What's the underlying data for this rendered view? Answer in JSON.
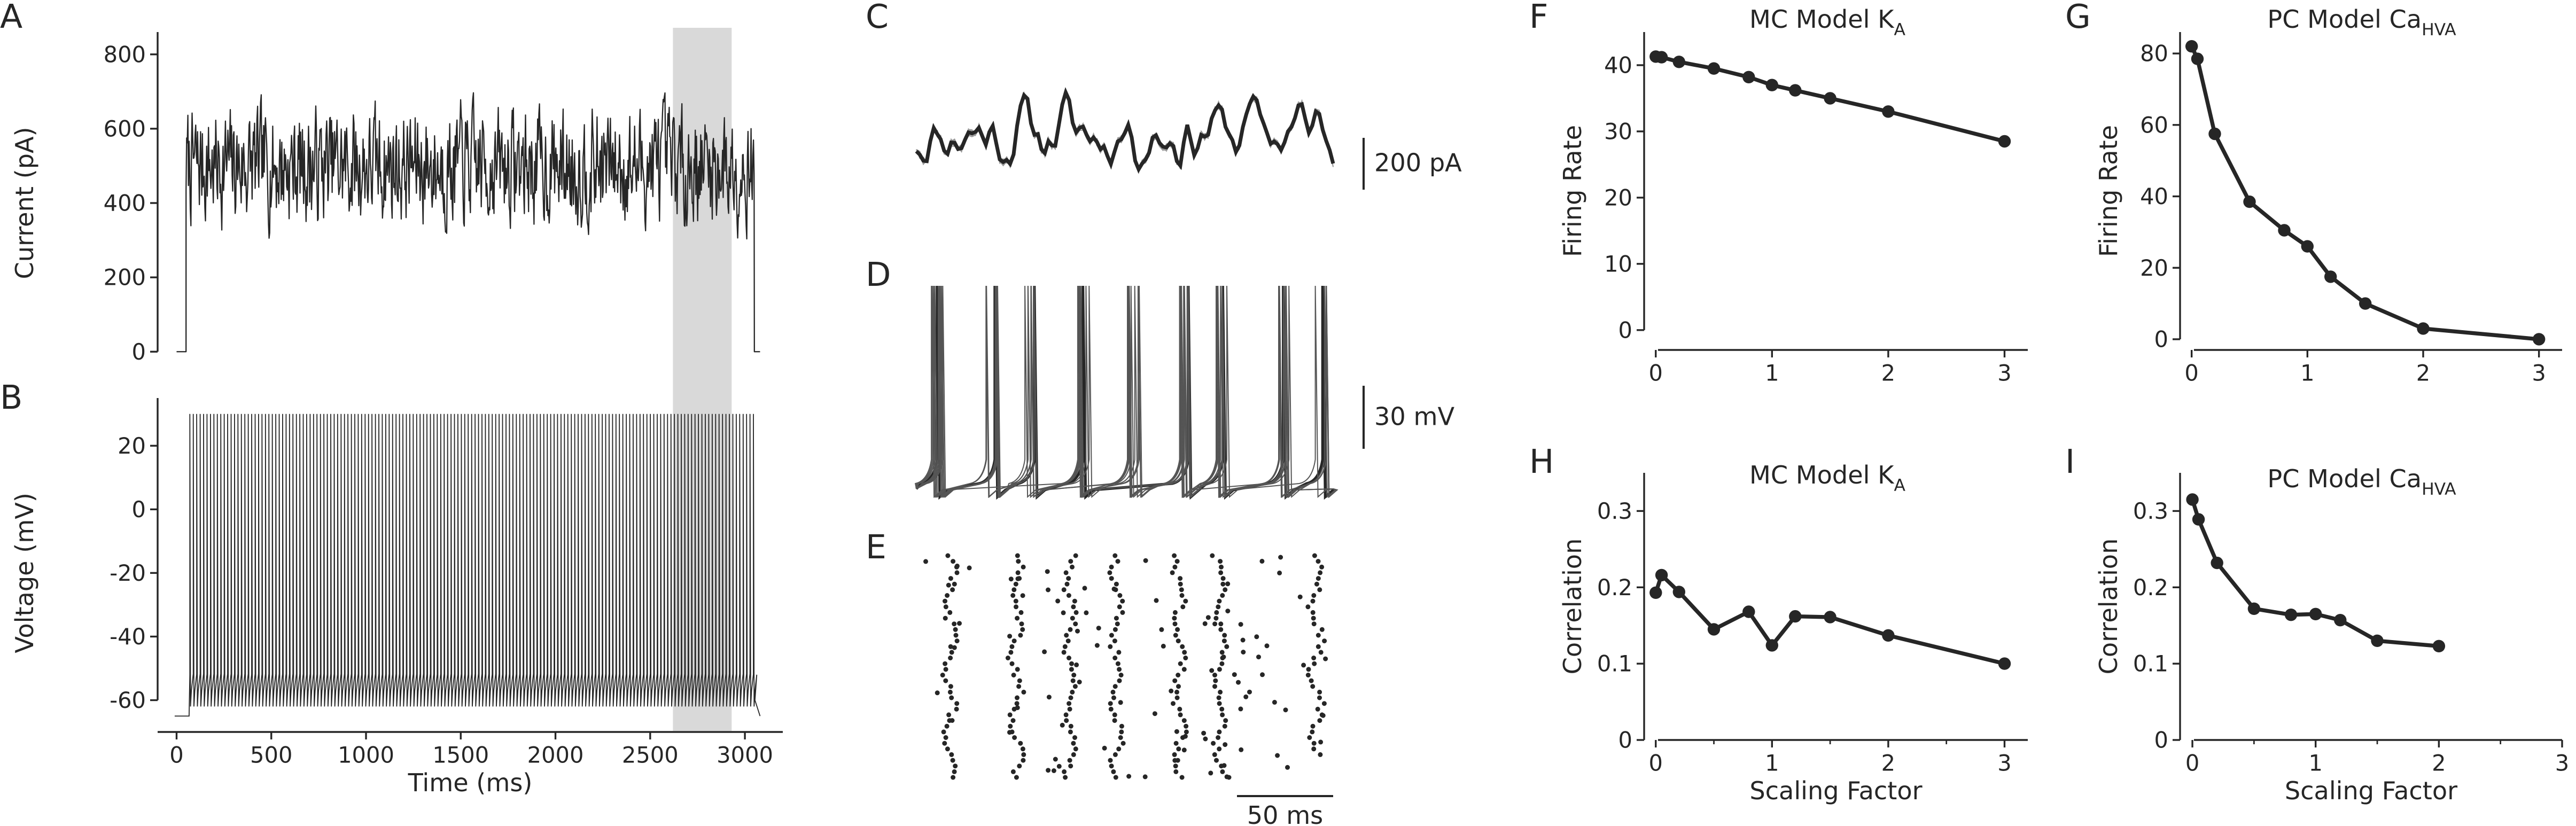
{
  "figure": {
    "panels": [
      "A",
      "B",
      "C",
      "D",
      "E",
      "F",
      "G",
      "H",
      "I"
    ]
  },
  "chart_data": [
    {
      "id": "A",
      "type": "line",
      "ylabel": "Current (pA)",
      "xlim": [
        -100,
        3200
      ],
      "ylim": [
        -60,
        860
      ],
      "yticks": [
        0,
        200,
        400,
        600,
        800
      ],
      "note": "noisy injected current, 0 pA before onset and after offset, fluctuating ~200-780 pA between 50 and 3050 ms",
      "series": [
        {
          "step_on_ms": 50,
          "step_off_ms": 3050,
          "mean_pA": 500,
          "min_pA": 200,
          "max_pA": 780
        }
      ]
    },
    {
      "id": "B",
      "type": "line",
      "xlabel": "Time (ms)",
      "ylabel": "Voltage (mV)",
      "xlim": [
        -100,
        3200
      ],
      "ylim": [
        -70,
        35
      ],
      "xticks": [
        0,
        500,
        1000,
        1500,
        2000,
        2500,
        3000
      ],
      "yticks": [
        -60,
        -40,
        -20,
        0,
        20
      ],
      "series": [
        {
          "resting_mV": -65,
          "trough_mV": -62,
          "spike_peak_mV": 30,
          "spike_count": 165,
          "first_spike_ms": 70,
          "last_spike_ms": 3045
        }
      ],
      "highlight": {
        "start_ms": 2620,
        "end_ms": 2930
      }
    },
    {
      "id": "C",
      "type": "line",
      "scalebar": {
        "value": 200,
        "unit": "pA",
        "label": "200 pA"
      },
      "note": "zoom of highlighted current: thin grey repeats around thick black mean trace"
    },
    {
      "id": "D",
      "type": "line",
      "scalebar": {
        "value": 30,
        "unit": "mV",
        "label": "30 mV"
      },
      "note": "overlaid voltage traces from repeated trials, one trial thick"
    },
    {
      "id": "E",
      "type": "scatter",
      "scalebar": {
        "value": 50,
        "unit": "ms",
        "label": "50 ms"
      },
      "note": "spike raster across trials"
    },
    {
      "id": "F",
      "type": "line",
      "title": "MC Model K",
      "title_sub": "A",
      "ylabel": "Firing Rate",
      "xlim": [
        -0.1,
        3.2
      ],
      "ylim": [
        -3,
        45
      ],
      "xticks": [
        0,
        1,
        2,
        3
      ],
      "yticks": [
        0,
        10,
        20,
        30,
        40
      ],
      "x": [
        0,
        0.05,
        0.2,
        0.5,
        0.8,
        1.0,
        1.2,
        1.5,
        2.0,
        3.0
      ],
      "series": [
        {
          "values": [
            41.3,
            41.2,
            40.5,
            39.5,
            38.2,
            37.0,
            36.2,
            35.0,
            33.0,
            28.5
          ]
        }
      ]
    },
    {
      "id": "G",
      "type": "line",
      "title": "PC Model Ca",
      "title_sub": "HVA",
      "ylabel": "Firing Rate",
      "xlim": [
        -0.1,
        3.2
      ],
      "ylim": [
        -3,
        86
      ],
      "xticks": [
        0,
        1,
        2,
        3
      ],
      "yticks": [
        0,
        20,
        40,
        60,
        80
      ],
      "x": [
        0,
        0.05,
        0.2,
        0.5,
        0.8,
        1.0,
        1.2,
        1.5,
        2.0,
        3.0
      ],
      "series": [
        {
          "values": [
            82.0,
            78.5,
            57.5,
            38.5,
            30.5,
            26.0,
            17.5,
            10.0,
            3.0,
            0.0
          ]
        }
      ]
    },
    {
      "id": "H",
      "type": "line",
      "title": "MC Model K",
      "title_sub": "A",
      "xlabel": "Scaling Factor",
      "ylabel": "Correlation",
      "xlim": [
        -0.1,
        3.2
      ],
      "ylim": [
        0,
        0.35
      ],
      "xticks": [
        0,
        1,
        2,
        3
      ],
      "yticks": [
        0.0,
        0.1,
        0.2,
        0.3
      ],
      "x": [
        0,
        0.05,
        0.2,
        0.5,
        0.8,
        1.0,
        1.2,
        1.5,
        2.0,
        3.0
      ],
      "series": [
        {
          "values": [
            0.193,
            0.216,
            0.194,
            0.145,
            0.168,
            0.124,
            0.162,
            0.161,
            0.137,
            0.1
          ]
        }
      ]
    },
    {
      "id": "I",
      "type": "line",
      "title": "PC Model Ca",
      "title_sub": "HVA",
      "xlabel": "Scaling Factor",
      "ylabel": "Correlation",
      "xlim": [
        -0.1,
        3.0
      ],
      "ylim": [
        0,
        0.35
      ],
      "xticks": [
        0,
        1,
        2,
        3
      ],
      "yticks": [
        0.0,
        0.1,
        0.2,
        0.3
      ],
      "x": [
        0,
        0.05,
        0.2,
        0.5,
        0.8,
        1.0,
        1.2,
        1.5,
        2.0
      ],
      "series": [
        {
          "values": [
            0.315,
            0.289,
            0.232,
            0.172,
            0.164,
            0.165,
            0.157,
            0.13,
            0.123
          ]
        }
      ]
    }
  ],
  "colors": {
    "trace": "#262626",
    "light_trace": "#999999",
    "highlight": "#d9d9d9"
  }
}
